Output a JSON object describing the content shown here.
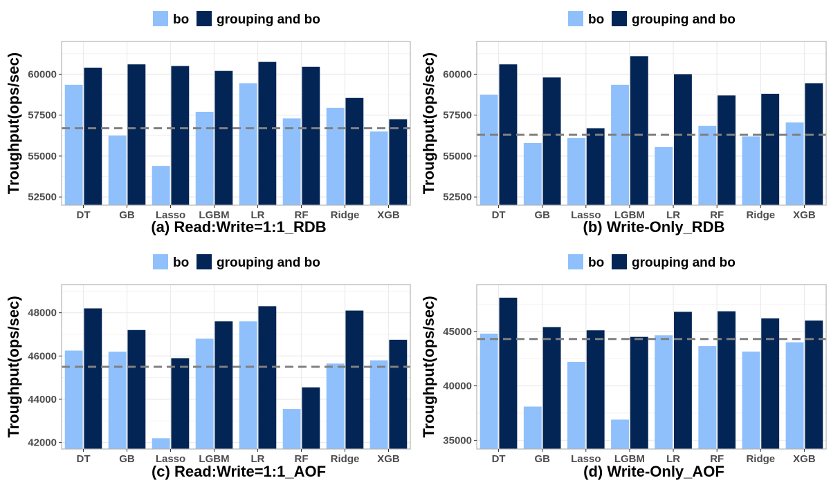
{
  "colors": {
    "bo": "#8fc0fc",
    "grouping_and_bo": "#032555",
    "baseline": "#808080",
    "panel_border": "#b3b3b3",
    "grid": "#ebebeb"
  },
  "legend": {
    "bo": "bo",
    "grouping_and_bo": "grouping and bo"
  },
  "chart_data": [
    {
      "type": "bar",
      "caption": "(a) Read:Write=1:1_RDB",
      "ylabel": "Troughput(ops/sec)",
      "categories": [
        "DT",
        "GB",
        "Lasso",
        "LGBM",
        "LR",
        "RF",
        "Ridge",
        "XGB"
      ],
      "ylim": [
        52000,
        62000
      ],
      "yticks": [
        52500,
        55000,
        57500,
        60000
      ],
      "baseline": 56700,
      "series": [
        {
          "name": "bo",
          "values": [
            59350,
            56250,
            54400,
            57700,
            59450,
            57300,
            57950,
            56500
          ]
        },
        {
          "name": "grouping and bo",
          "values": [
            60400,
            60600,
            60500,
            60200,
            60750,
            60450,
            58550,
            57250
          ]
        }
      ]
    },
    {
      "type": "bar",
      "caption": "(b) Write-Only_RDB",
      "ylabel": "Troughput(ops/sec)",
      "categories": [
        "DT",
        "GB",
        "Lasso",
        "LGBM",
        "LR",
        "RF",
        "Ridge",
        "XGB"
      ],
      "ylim": [
        52000,
        62000
      ],
      "yticks": [
        52500,
        55000,
        57500,
        60000
      ],
      "baseline": 56300,
      "series": [
        {
          "name": "bo",
          "values": [
            58750,
            55800,
            56100,
            59350,
            55550,
            56850,
            56200,
            57050
          ]
        },
        {
          "name": "grouping and bo",
          "values": [
            60600,
            59800,
            56700,
            61100,
            60000,
            58700,
            58800,
            59450
          ]
        }
      ]
    },
    {
      "type": "bar",
      "caption": "(c) Read:Write=1:1_AOF",
      "ylabel": "Troughput(ops/sec)",
      "categories": [
        "DT",
        "GB",
        "Lasso",
        "LGBM",
        "LR",
        "RF",
        "Ridge",
        "XGB"
      ],
      "ylim": [
        41700,
        49300
      ],
      "yticks": [
        42000,
        44000,
        46000,
        48000
      ],
      "baseline": 45500,
      "series": [
        {
          "name": "bo",
          "values": [
            46250,
            46200,
            42200,
            46800,
            47600,
            43550,
            45650,
            45800
          ]
        },
        {
          "name": "grouping and bo",
          "values": [
            48200,
            47200,
            45900,
            47600,
            48300,
            44550,
            48100,
            46750
          ]
        }
      ]
    },
    {
      "type": "bar",
      "caption": "(d) Write-Only_AOF",
      "ylabel": "Troughput(ops/sec)",
      "categories": [
        "DT",
        "GB",
        "Lasso",
        "LGBM",
        "LR",
        "RF",
        "Ridge",
        "XGB"
      ],
      "ylim": [
        34200,
        49300
      ],
      "yticks": [
        35000,
        40000,
        45000
      ],
      "baseline": 44300,
      "series": [
        {
          "name": "bo",
          "values": [
            44800,
            38100,
            42200,
            36900,
            44650,
            43650,
            43150,
            44000
          ]
        },
        {
          "name": "grouping and bo",
          "values": [
            48100,
            45400,
            45100,
            44500,
            46800,
            46850,
            46200,
            46000
          ]
        }
      ]
    }
  ]
}
